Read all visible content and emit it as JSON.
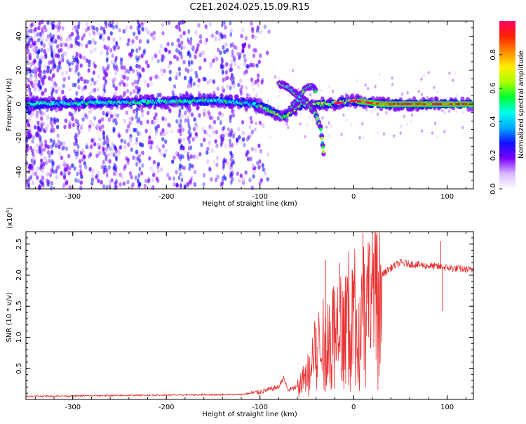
{
  "title": "C2E1.2024.025.15.09.R15",
  "chart_data": [
    {
      "type": "heatmap",
      "xlabel": "Height of straight line (km)",
      "ylabel": "Frequency (Hz)",
      "xlim": [
        -350,
        128
      ],
      "ylim": [
        -50,
        49
      ],
      "x_ticks": [
        -300,
        -200,
        -100,
        0,
        100
      ],
      "y_ticks": [
        -40,
        -20,
        0,
        20,
        40
      ],
      "colorbar": {
        "label": "Normalized spectral amplitude",
        "range": [
          0,
          1
        ],
        "ticks": [
          0.0,
          0.2,
          0.4,
          0.6,
          0.8
        ],
        "colors": [
          "#ffffff",
          "#d8b8ff",
          "#7a00ff",
          "#1010ff",
          "#00aaff",
          "#00ffee",
          "#00ff33",
          "#aaff00",
          "#ffee00",
          "#ff8800",
          "#ff2200",
          "#ff0066"
        ]
      },
      "main_trace": [
        {
          "x": -350,
          "y": 0
        },
        {
          "x": -250,
          "y": 1
        },
        {
          "x": -150,
          "y": 2
        },
        {
          "x": -120,
          "y": 1
        },
        {
          "x": -100,
          "y": -1
        },
        {
          "x": -85,
          "y": -5
        },
        {
          "x": -75,
          "y": -8
        },
        {
          "x": -65,
          "y": -4
        },
        {
          "x": -55,
          "y": 0
        },
        {
          "x": -30,
          "y": 0
        },
        {
          "x": -10,
          "y": 1
        },
        {
          "x": 0,
          "y": 2
        },
        {
          "x": 30,
          "y": 0
        },
        {
          "x": 128,
          "y": 0
        }
      ],
      "branch_upper": [
        {
          "x": -80,
          "y": 12
        },
        {
          "x": -70,
          "y": 10
        },
        {
          "x": -60,
          "y": 5
        },
        {
          "x": -50,
          "y": 1
        },
        {
          "x": -40,
          "y": -6
        },
        {
          "x": -35,
          "y": -15
        },
        {
          "x": -32,
          "y": -28
        }
      ],
      "branch_lower": [
        {
          "x": -68,
          "y": -3
        },
        {
          "x": -60,
          "y": 2
        },
        {
          "x": -52,
          "y": 9
        },
        {
          "x": -45,
          "y": 11
        },
        {
          "x": -40,
          "y": 7
        }
      ],
      "isolated_feature": {
        "x": -117,
        "y": 33
      }
    },
    {
      "type": "line",
      "xlabel": "Height of straight line (km)",
      "ylabel": "SNR (10 * v/v)",
      "y_scale_label": "(x10",
      "y_scale_exp": "4",
      "xlim": [
        -350,
        128
      ],
      "ylim": [
        0,
        2.7
      ],
      "x_ticks": [
        -300,
        -200,
        -100,
        0,
        100
      ],
      "y_ticks": [
        0.5,
        1.0,
        1.5,
        2.0,
        2.5
      ],
      "line_color": "#e83030",
      "envelope": [
        {
          "x": -350,
          "y": 0.05
        },
        {
          "x": -200,
          "y": 0.07
        },
        {
          "x": -120,
          "y": 0.08
        },
        {
          "x": -100,
          "y": 0.12
        },
        {
          "x": -80,
          "y": 0.2
        },
        {
          "x": -75,
          "y": 0.35
        },
        {
          "x": -70,
          "y": 0.15
        },
        {
          "x": -60,
          "y": 0.2
        },
        {
          "x": -50,
          "y": 0.45
        },
        {
          "x": -40,
          "y": 0.9
        },
        {
          "x": -30,
          "y": 1.1
        },
        {
          "x": -20,
          "y": 1.3
        },
        {
          "x": -10,
          "y": 1.5
        },
        {
          "x": 0,
          "y": 1.6
        },
        {
          "x": 10,
          "y": 1.75
        },
        {
          "x": 20,
          "y": 1.85
        },
        {
          "x": 30,
          "y": 2.0
        },
        {
          "x": 40,
          "y": 2.12
        },
        {
          "x": 50,
          "y": 2.2
        },
        {
          "x": 60,
          "y": 2.18
        },
        {
          "x": 80,
          "y": 2.15
        },
        {
          "x": 100,
          "y": 2.12
        },
        {
          "x": 128,
          "y": 2.08
        }
      ],
      "spikes": [
        {
          "x": 10,
          "y": 2.68
        },
        {
          "x": -30,
          "y": 2.25
        },
        {
          "x": 93,
          "y": 2.55
        },
        {
          "x": 95,
          "y": 1.42
        },
        {
          "x": -15,
          "y": 2.2
        },
        {
          "x": -8,
          "y": 1.9
        }
      ]
    }
  ]
}
